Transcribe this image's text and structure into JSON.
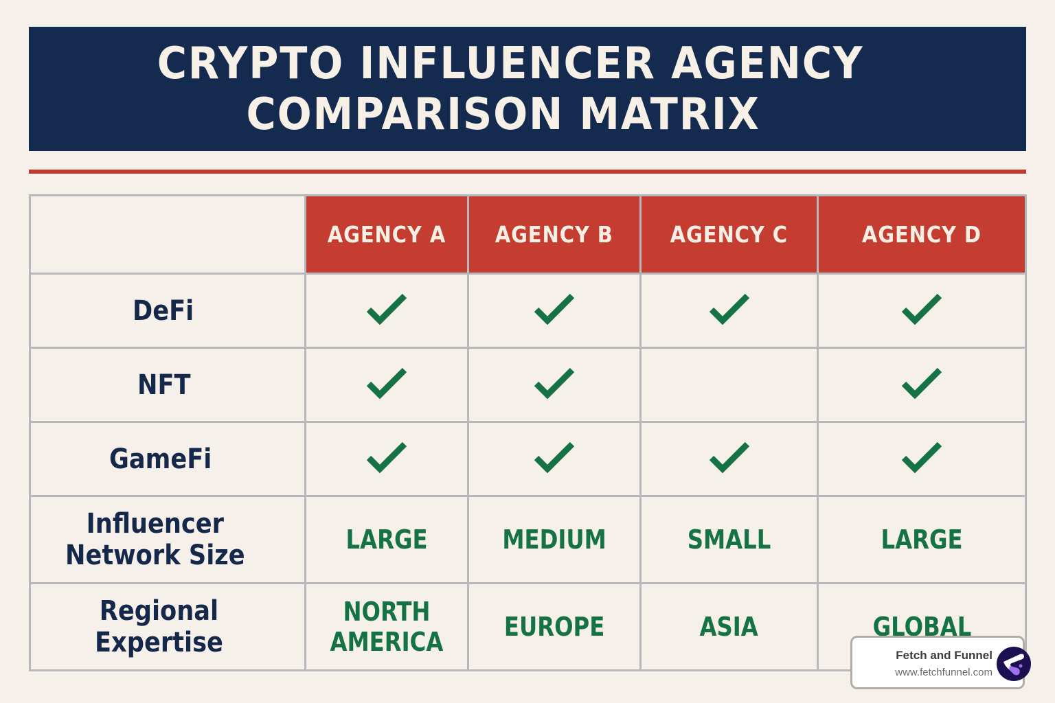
{
  "title": {
    "line1": "CRYPTO INFLUENCER AGENCY",
    "line2": "COMPARISON MATRIX"
  },
  "colors": {
    "banner": "#142a4f",
    "accent_red": "#c53d30",
    "check_green": "#157246",
    "label_navy": "#15284a",
    "background": "#f5f0e9"
  },
  "table": {
    "agencies": [
      "AGENCY A",
      "AGENCY B",
      "AGENCY C",
      "AGENCY D"
    ],
    "rows": [
      {
        "label": "DeFi",
        "type": "check",
        "values": [
          true,
          true,
          true,
          true
        ]
      },
      {
        "label": "NFT",
        "type": "check",
        "values": [
          true,
          true,
          false,
          true
        ]
      },
      {
        "label": "GameFi",
        "type": "check",
        "values": [
          true,
          true,
          true,
          true
        ]
      },
      {
        "label": "Influencer\nNetwork Size",
        "type": "text",
        "values": [
          "LARGE",
          "MEDIUM",
          "SMALL",
          "LARGE"
        ]
      },
      {
        "label": "Regional\nExpertise",
        "type": "text",
        "values": [
          "NORTH\nAMERICA",
          "EUROPE",
          "ASIA",
          "GLOBAL"
        ]
      }
    ],
    "check_icon": "checkmark-icon"
  },
  "badge": {
    "name": "Fetch and Funnel",
    "url": "www.fetchfunnel.com",
    "logo_icon": "fetch-funnel-logo"
  }
}
